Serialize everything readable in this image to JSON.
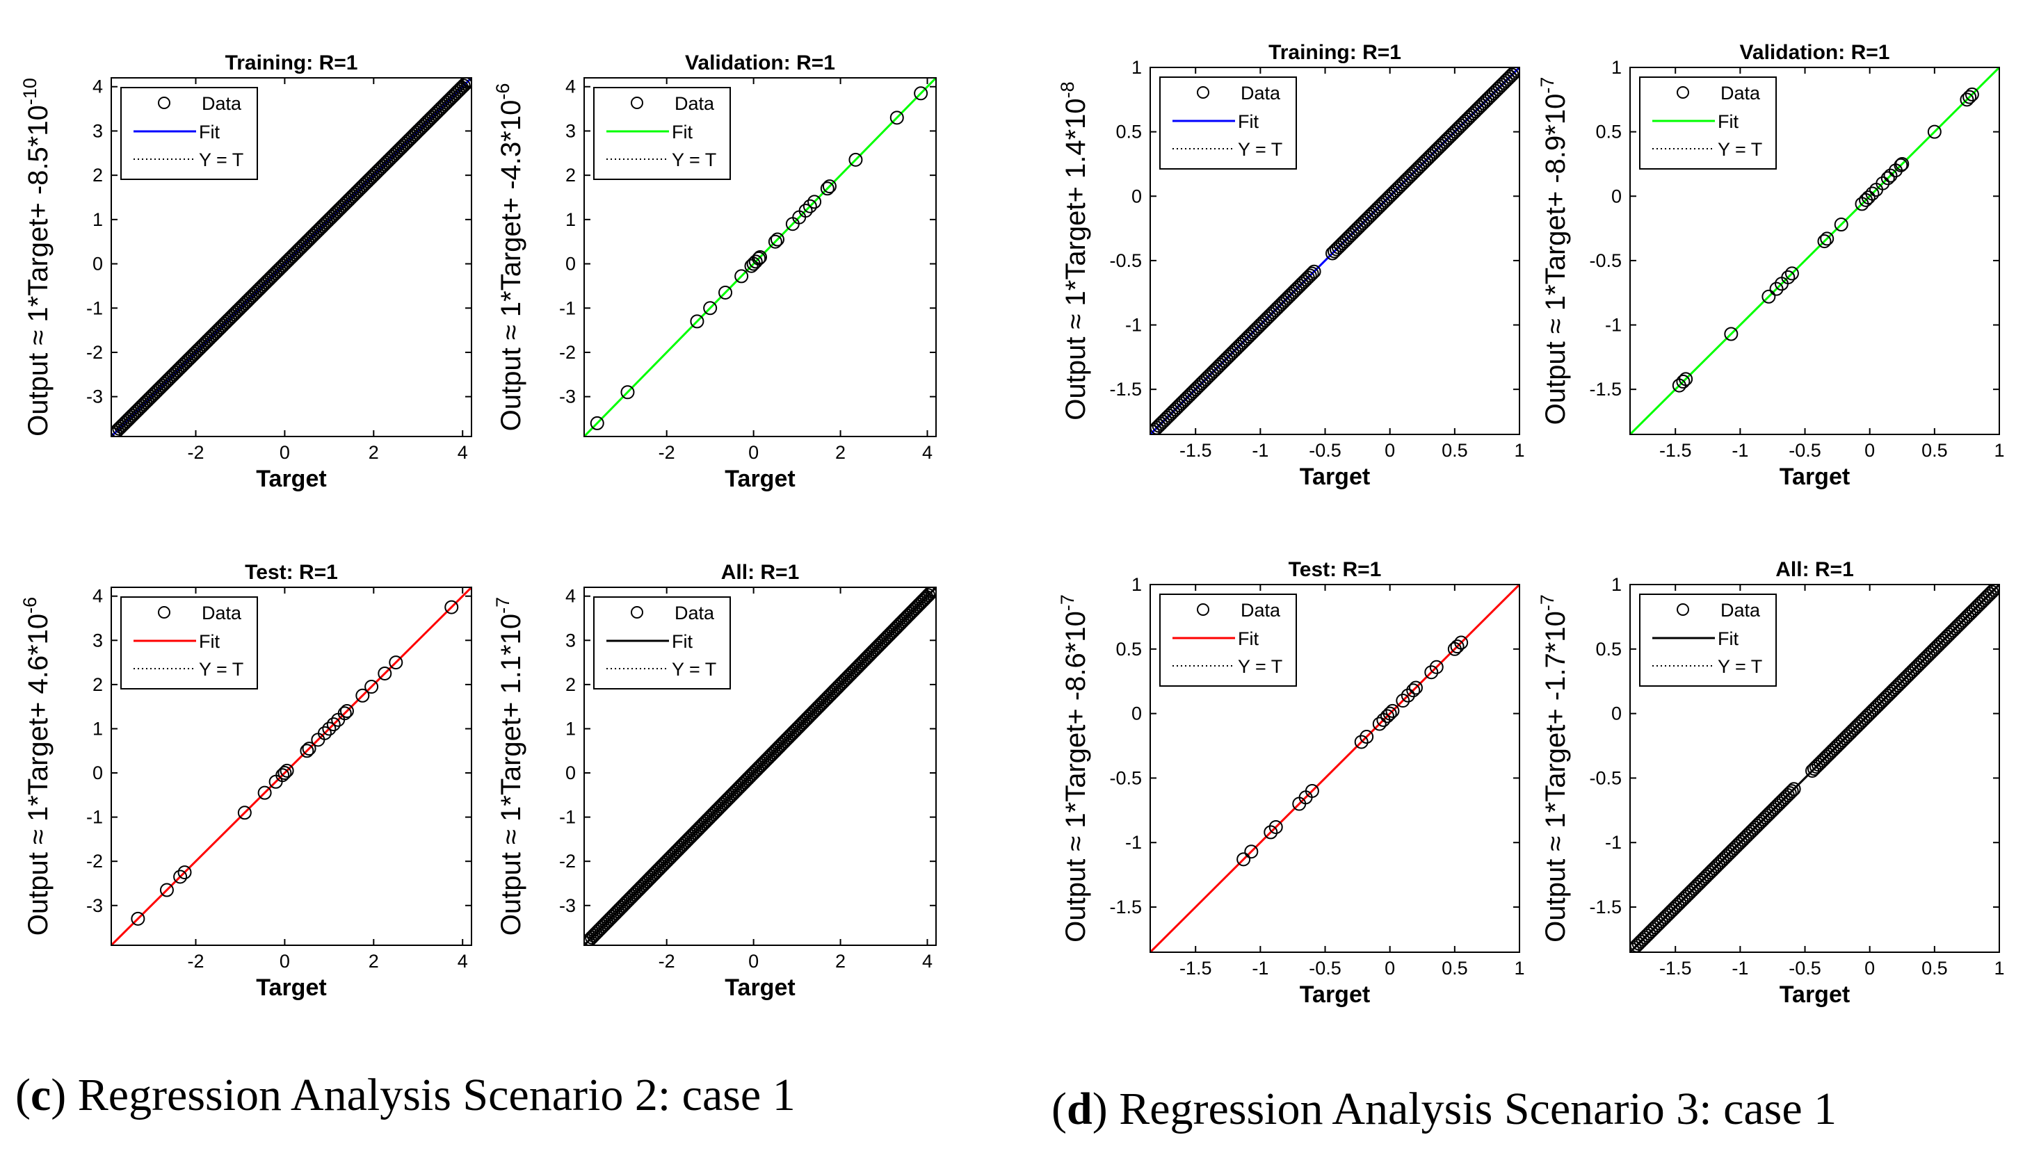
{
  "legend_labels": {
    "data": "Data",
    "fit": "Fit",
    "yt": "Y = T"
  },
  "colors": {
    "training": "#0000ff",
    "validation": "#00ff00",
    "test": "#ff0000",
    "all": "#000000",
    "markers": "#000000",
    "ideal": "#000000"
  },
  "captions": [
    {
      "letter": "c",
      "open": "(",
      "close": ")",
      "text": "Regression Analysis Scenario 2: case 1"
    },
    {
      "letter": "d",
      "open": "(",
      "close": ")",
      "text": "Regression Analysis Scenario 3: case 1"
    }
  ],
  "chart_data": [
    {
      "type": "scatter",
      "scenario": "c",
      "panel": "training",
      "title": "Training: R=1",
      "xlabel": "Target",
      "ylabel": {
        "base": "Output ≈ 1*Target+ -8.5*10",
        "exp": "-10"
      },
      "xlim": [
        -3.9,
        4.2
      ],
      "ylim": [
        -3.9,
        4.2
      ],
      "xticks": [
        -2,
        0,
        2,
        4
      ],
      "yticks": [
        -3,
        -2,
        -1,
        0,
        1,
        2,
        3,
        4
      ],
      "fit_color_key": "training",
      "fit": {
        "slope": 1,
        "intercept": -8.5e-10
      },
      "dense": true,
      "x_range": [
        -3.85,
        4.15
      ],
      "n_points": 190,
      "gap": null,
      "points": []
    },
    {
      "type": "scatter",
      "scenario": "c",
      "panel": "validation",
      "title": "Validation: R=1",
      "xlabel": "Target",
      "ylabel": {
        "base": "Output ≈ 1*Target+ -4.3*10",
        "exp": "-6"
      },
      "xlim": [
        -3.9,
        4.2
      ],
      "ylim": [
        -3.9,
        4.2
      ],
      "xticks": [
        -2,
        0,
        2,
        4
      ],
      "yticks": [
        -3,
        -2,
        -1,
        0,
        1,
        2,
        3,
        4
      ],
      "fit_color_key": "validation",
      "fit": {
        "slope": 1,
        "intercept": -4.3e-06
      },
      "dense": false,
      "points": [
        -3.6,
        -2.9,
        -1.3,
        -1.0,
        -0.65,
        -0.28,
        -0.05,
        0.0,
        0.05,
        0.12,
        0.15,
        0.5,
        0.55,
        0.9,
        1.05,
        1.2,
        1.3,
        1.4,
        1.7,
        1.75,
        2.35,
        3.3,
        3.85
      ]
    },
    {
      "type": "scatter",
      "scenario": "c",
      "panel": "test",
      "title": "Test: R=1",
      "xlabel": "Target",
      "ylabel": {
        "base": "Output ≈ 1*Target+ 4.6*10",
        "exp": "-6"
      },
      "xlim": [
        -3.9,
        4.2
      ],
      "ylim": [
        -3.9,
        4.2
      ],
      "xticks": [
        -2,
        0,
        2,
        4
      ],
      "yticks": [
        -3,
        -2,
        -1,
        0,
        1,
        2,
        3,
        4
      ],
      "fit_color_key": "test",
      "fit": {
        "slope": 1,
        "intercept": 4.6e-06
      },
      "dense": false,
      "points": [
        -3.3,
        -2.65,
        -2.35,
        -2.25,
        -0.9,
        -0.45,
        -0.2,
        -0.05,
        0.0,
        0.05,
        0.5,
        0.55,
        0.75,
        0.9,
        1.0,
        1.1,
        1.2,
        1.35,
        1.4,
        1.75,
        1.95,
        2.25,
        2.5,
        3.75
      ]
    },
    {
      "type": "scatter",
      "scenario": "c",
      "panel": "all",
      "title": "All: R=1",
      "xlabel": "Target",
      "ylabel": {
        "base": "Output ≈ 1*Target+ 1.1*10",
        "exp": "-7"
      },
      "xlim": [
        -3.9,
        4.2
      ],
      "ylim": [
        -3.9,
        4.2
      ],
      "xticks": [
        -2,
        0,
        2,
        4
      ],
      "yticks": [
        -3,
        -2,
        -1,
        0,
        1,
        2,
        3,
        4
      ],
      "fit_color_key": "all",
      "fit": {
        "slope": 1,
        "intercept": 1.1e-07
      },
      "dense": true,
      "x_range": [
        -3.85,
        4.15
      ],
      "n_points": 190,
      "gap": null,
      "points": []
    },
    {
      "type": "scatter",
      "scenario": "d",
      "panel": "training",
      "title": "Training: R=1",
      "xlabel": "Target",
      "ylabel": {
        "base": "Output ≈ 1*Target+ 1.4*10",
        "exp": "-8"
      },
      "xlim": [
        -1.85,
        1.0
      ],
      "ylim": [
        -1.85,
        1.0
      ],
      "xticks": [
        -1.5,
        -1,
        -0.5,
        0,
        0.5,
        1
      ],
      "yticks": [
        -1.5,
        -1,
        -0.5,
        0,
        0.5,
        1
      ],
      "fit_color_key": "training",
      "fit": {
        "slope": 1,
        "intercept": 1.4e-08
      },
      "dense": true,
      "x_range": [
        -1.83,
        0.99
      ],
      "n_points": 180,
      "gap": [
        -0.57,
        -0.45
      ],
      "points": []
    },
    {
      "type": "scatter",
      "scenario": "d",
      "panel": "validation",
      "title": "Validation: R=1",
      "xlabel": "Target",
      "ylabel": {
        "base": "Output ≈ 1*Target+ -8.9*10",
        "exp": "-7"
      },
      "xlim": [
        -1.85,
        1.0
      ],
      "ylim": [
        -1.85,
        1.0
      ],
      "xticks": [
        -1.5,
        -1,
        -0.5,
        0,
        0.5,
        1
      ],
      "yticks": [
        -1.5,
        -1,
        -0.5,
        0,
        0.5,
        1
      ],
      "fit_color_key": "validation",
      "fit": {
        "slope": 1,
        "intercept": -8.9e-07
      },
      "dense": false,
      "points": [
        -1.47,
        -1.44,
        -1.42,
        -1.07,
        -0.78,
        -0.72,
        -0.68,
        -0.63,
        -0.6,
        -0.35,
        -0.33,
        -0.22,
        -0.06,
        -0.03,
        -0.01,
        0.02,
        0.05,
        0.1,
        0.14,
        0.16,
        0.2,
        0.24,
        0.25,
        0.5,
        0.75,
        0.77,
        0.79
      ]
    },
    {
      "type": "scatter",
      "scenario": "d",
      "panel": "test",
      "title": "Test: R=1",
      "xlabel": "Target",
      "ylabel": {
        "base": "Output ≈ 1*Target+ -8.6*10",
        "exp": "-7"
      },
      "xlim": [
        -1.85,
        1.0
      ],
      "ylim": [
        -1.85,
        1.0
      ],
      "xticks": [
        -1.5,
        -1,
        -0.5,
        0,
        0.5,
        1
      ],
      "yticks": [
        -1.5,
        -1,
        -0.5,
        0,
        0.5,
        1
      ],
      "fit_color_key": "test",
      "fit": {
        "slope": 1,
        "intercept": -8.6e-07
      },
      "dense": false,
      "points": [
        -1.13,
        -1.07,
        -0.92,
        -0.88,
        -0.7,
        -0.65,
        -0.6,
        -0.22,
        -0.18,
        -0.08,
        -0.05,
        -0.02,
        0.0,
        0.02,
        0.1,
        0.14,
        0.18,
        0.2,
        0.32,
        0.36,
        0.5,
        0.52,
        0.55
      ]
    },
    {
      "type": "scatter",
      "scenario": "d",
      "panel": "all",
      "title": "All: R=1",
      "xlabel": "Target",
      "ylabel": {
        "base": "Output ≈ 1*Target+ -1.7*10",
        "exp": "-7"
      },
      "xlim": [
        -1.85,
        1.0
      ],
      "ylim": [
        -1.85,
        1.0
      ],
      "xticks": [
        -1.5,
        -1,
        -0.5,
        0,
        0.5,
        1
      ],
      "yticks": [
        -1.5,
        -1,
        -0.5,
        0,
        0.5,
        1
      ],
      "fit_color_key": "all",
      "fit": {
        "slope": 1,
        "intercept": -1.7e-07
      },
      "dense": true,
      "x_range": [
        -1.83,
        0.99
      ],
      "n_points": 180,
      "gap": [
        -0.57,
        -0.45
      ],
      "points": []
    }
  ]
}
